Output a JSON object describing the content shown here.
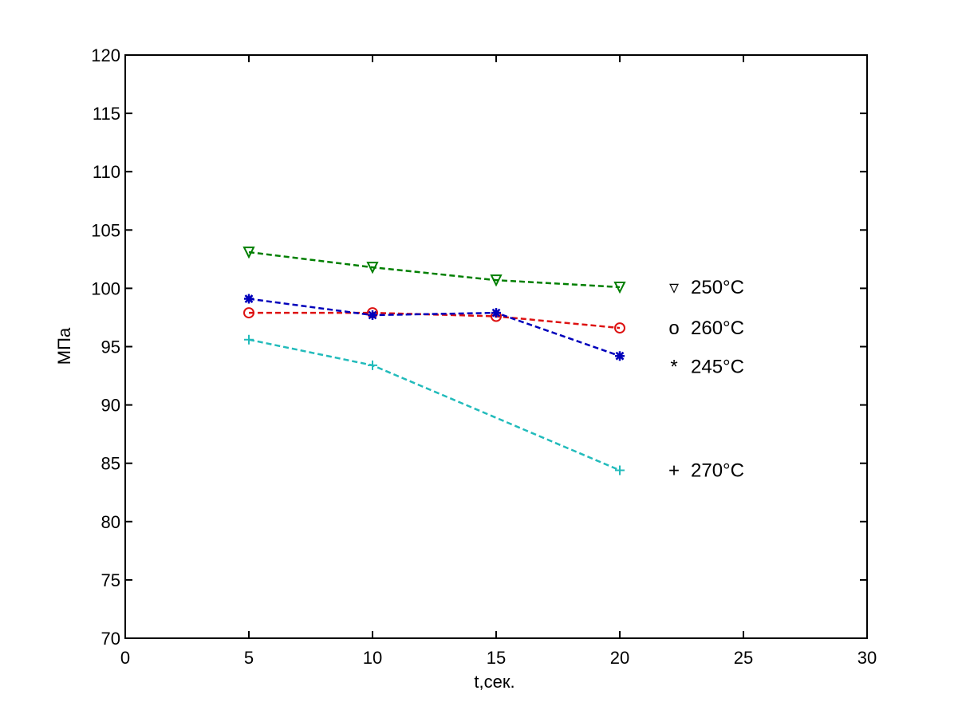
{
  "chart_data": {
    "type": "line",
    "title": "",
    "xlabel": "t,сек.",
    "ylabel": "МПа",
    "xlim": [
      0,
      30
    ],
    "ylim": [
      70,
      120
    ],
    "x_ticks": [
      0,
      5,
      10,
      15,
      20,
      25,
      30
    ],
    "y_ticks": [
      70,
      75,
      80,
      85,
      90,
      95,
      100,
      105,
      110,
      115,
      120
    ],
    "grid": false,
    "legend_placement": "right, inline next to line ends",
    "series": [
      {
        "name": "250°C",
        "legend_symbol": "▿",
        "marker": "triangle-down",
        "color": "#007f00",
        "x": [
          5,
          10,
          15,
          20
        ],
        "y": [
          103.1,
          101.8,
          100.7,
          100.1
        ]
      },
      {
        "name": "260°C",
        "legend_symbol": "o",
        "marker": "circle",
        "color": "#dd1111",
        "x": [
          5,
          10,
          15,
          20
        ],
        "y": [
          97.9,
          97.9,
          97.6,
          96.6
        ]
      },
      {
        "name": "245°C",
        "legend_symbol": "*",
        "marker": "asterisk",
        "color": "#0000bb",
        "x": [
          5,
          10,
          15,
          20
        ],
        "y": [
          99.1,
          97.7,
          97.9,
          94.2
        ]
      },
      {
        "name": "270°C",
        "legend_symbol": "+",
        "marker": "plus",
        "color": "#22bbbb",
        "x": [
          5,
          10,
          20
        ],
        "y": [
          95.6,
          93.4,
          84.4
        ]
      }
    ]
  }
}
